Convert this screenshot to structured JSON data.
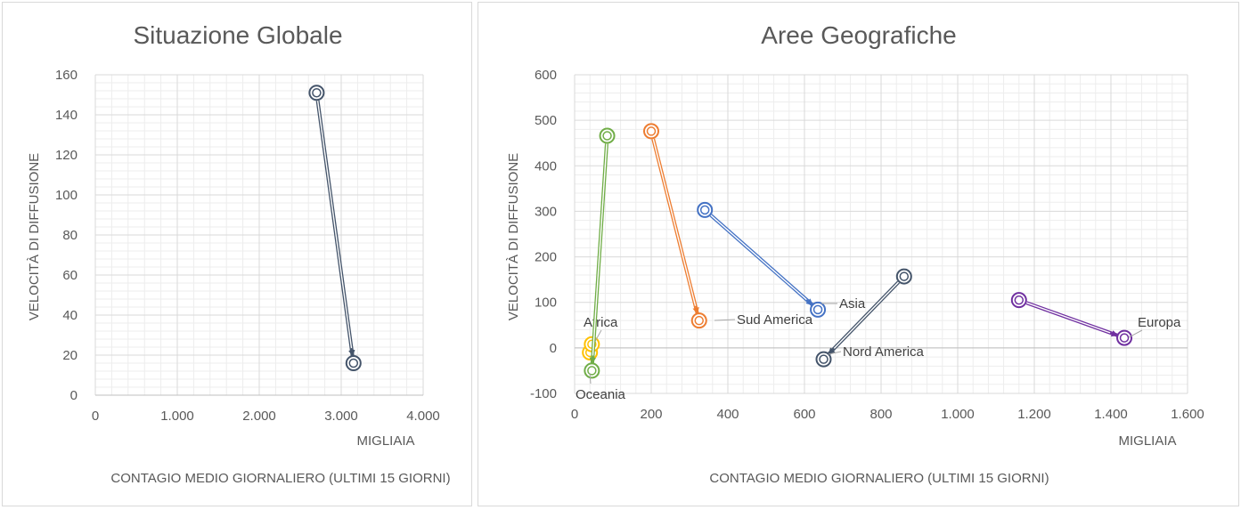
{
  "colors": {
    "global": "#44546a",
    "asia": "#4472c4",
    "sud_america": "#ed7d31",
    "africa": "#ffc000",
    "oceania": "#70ad47",
    "nord_america": "#44546a",
    "europa": "#7030a0",
    "negative_tick": "#ff0000"
  },
  "chart_data": [
    {
      "type": "scatter",
      "title": "Situazione Globale",
      "xlabel": "CONTAGIO MEDIO GIORNALIERO (ULTIMI 15 GIORNI)",
      "xunit": "MIGLIAIA",
      "ylabel": "VELOCITÀ DI DIFFUSIONE",
      "xlim": [
        0,
        4000
      ],
      "ylim": [
        0,
        160
      ],
      "xticks": [
        0,
        1000,
        2000,
        3000,
        4000
      ],
      "xtick_labels": [
        "0",
        "1.000",
        "2.000",
        "3.000",
        "4.000"
      ],
      "yticks": [
        0,
        20,
        40,
        60,
        80,
        100,
        120,
        140,
        160
      ],
      "ytick_labels": [
        "0",
        "20",
        "40",
        "60",
        "80",
        "100",
        "120",
        "140",
        "160"
      ],
      "grid": true,
      "series": [
        {
          "color": "global",
          "points": [
            {
              "x": 2700,
              "y": 151
            },
            {
              "x": 3150,
              "y": 16
            }
          ]
        }
      ]
    },
    {
      "type": "scatter",
      "title": "Aree Geografiche",
      "xlabel": "CONTAGIO MEDIO GIORNALIERO (ULTIMI 15 GIORNI)",
      "xunit": "MIGLIAIA",
      "ylabel": "VELOCITÀ DI DIFFUSIONE",
      "xlim": [
        0,
        1600
      ],
      "ylim": [
        -100,
        600
      ],
      "xticks": [
        0,
        200,
        400,
        600,
        800,
        1000,
        1200,
        1400,
        1600
      ],
      "xtick_labels": [
        "0",
        "200",
        "400",
        "600",
        "800",
        "1.000",
        "1.200",
        "1.400",
        "1.600"
      ],
      "yticks": [
        -100,
        0,
        100,
        200,
        300,
        400,
        500,
        600
      ],
      "ytick_labels": [
        "-100",
        "0",
        "100",
        "200",
        "300",
        "400",
        "500",
        "600"
      ],
      "grid": true,
      "series": [
        {
          "name": "Asia",
          "color": "asia",
          "points": [
            {
              "x": 340,
              "y": 303
            },
            {
              "x": 635,
              "y": 84
            }
          ]
        },
        {
          "name": "Sud America",
          "color": "sud_america",
          "points": [
            {
              "x": 200,
              "y": 476
            },
            {
              "x": 325,
              "y": 60
            }
          ]
        },
        {
          "name": "Africa",
          "color": "africa",
          "points": [
            {
              "x": 40,
              "y": -10
            },
            {
              "x": 45,
              "y": 8
            }
          ]
        },
        {
          "name": "Oceania",
          "color": "oceania",
          "points": [
            {
              "x": 85,
              "y": 466
            },
            {
              "x": 45,
              "y": -50
            }
          ]
        },
        {
          "name": "Nord America",
          "color": "nord_america",
          "points": [
            {
              "x": 860,
              "y": 157
            },
            {
              "x": 650,
              "y": -25
            }
          ]
        },
        {
          "name": "Europa",
          "color": "europa",
          "points": [
            {
              "x": 1160,
              "y": 105
            },
            {
              "x": 1435,
              "y": 22
            }
          ]
        }
      ]
    }
  ]
}
